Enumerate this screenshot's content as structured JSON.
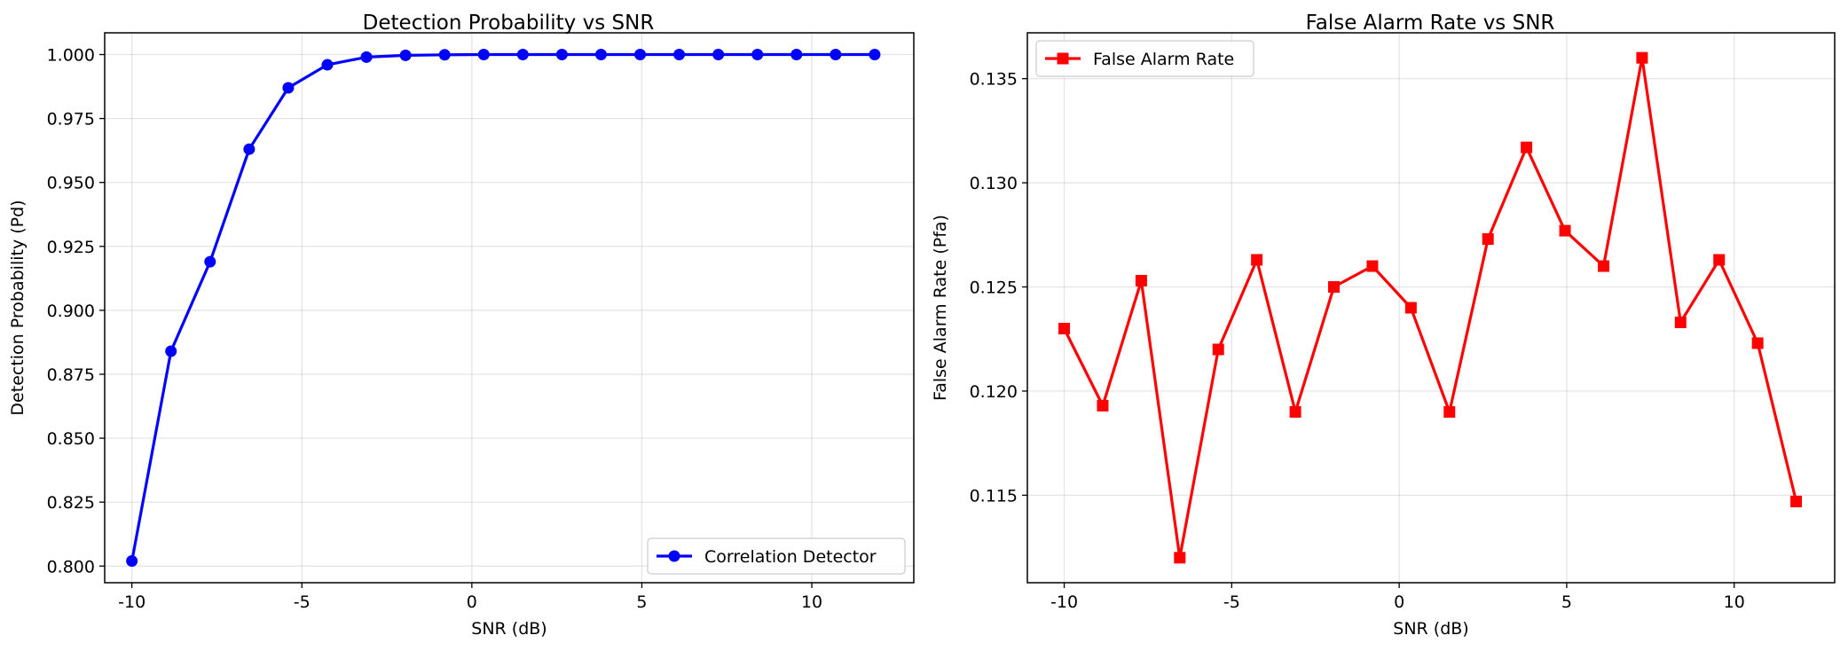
{
  "chart_data": [
    {
      "type": "line",
      "title": "Detection Probability vs SNR",
      "xlabel": "SNR (dB)",
      "ylabel": "Detection Probability (Pd)",
      "xlim": [
        -10.8,
        13.0
      ],
      "ylim": [
        0.7935,
        1.0085
      ],
      "xticks": [
        -10,
        -5,
        0,
        5,
        10
      ],
      "xtick_labels": [
        "-10",
        "-5",
        "0",
        "5",
        "10"
      ],
      "yticks": [
        0.8,
        0.825,
        0.85,
        0.875,
        0.9,
        0.925,
        0.95,
        0.975,
        1.0
      ],
      "ytick_labels": [
        "0.800",
        "0.825",
        "0.850",
        "0.875",
        "0.900",
        "0.925",
        "0.950",
        "0.975",
        "1.000"
      ],
      "grid": true,
      "legend_position": "lower-right",
      "series": [
        {
          "name": "Correlation Detector",
          "color": "#0000ff",
          "marker": "circle",
          "x": [
            -10.0,
            -8.85,
            -7.7,
            -6.55,
            -5.4,
            -4.25,
            -3.1,
            -1.95,
            -0.8,
            0.35,
            1.5,
            2.65,
            3.8,
            4.95,
            6.1,
            7.25,
            8.4,
            9.55,
            10.7,
            11.85
          ],
          "y": [
            0.802,
            0.884,
            0.919,
            0.963,
            0.987,
            0.996,
            0.999,
            0.9997,
            0.9999,
            1.0,
            1.0,
            1.0,
            1.0,
            1.0,
            1.0,
            1.0,
            1.0,
            1.0,
            1.0,
            1.0
          ]
        }
      ]
    },
    {
      "type": "line",
      "title": "False Alarm Rate vs SNR",
      "xlabel": "SNR (dB)",
      "ylabel": "False Alarm Rate (Pfa)",
      "xlim": [
        -11.1,
        13.0
      ],
      "ylim": [
        0.1108,
        0.1372
      ],
      "xticks": [
        -10,
        -5,
        0,
        5,
        10
      ],
      "xtick_labels": [
        "-10",
        "-5",
        "0",
        "5",
        "10"
      ],
      "yticks": [
        0.115,
        0.12,
        0.125,
        0.13,
        0.135
      ],
      "ytick_labels": [
        "0.115",
        "0.120",
        "0.125",
        "0.130",
        "0.135"
      ],
      "grid": true,
      "legend_position": "upper-left",
      "series": [
        {
          "name": "False Alarm Rate",
          "color": "#ff0000",
          "marker": "square",
          "x": [
            -10.0,
            -8.85,
            -7.7,
            -6.55,
            -5.4,
            -4.25,
            -3.1,
            -1.95,
            -0.8,
            0.35,
            1.5,
            2.65,
            3.8,
            4.95,
            6.1,
            7.25,
            8.4,
            9.55,
            10.7,
            11.85
          ],
          "y": [
            0.123,
            0.1193,
            0.1253,
            0.112,
            0.122,
            0.1263,
            0.119,
            0.125,
            0.126,
            0.124,
            0.119,
            0.1273,
            0.1317,
            0.1277,
            0.126,
            0.136,
            0.1233,
            0.1263,
            0.1223,
            0.1147
          ]
        }
      ]
    }
  ]
}
